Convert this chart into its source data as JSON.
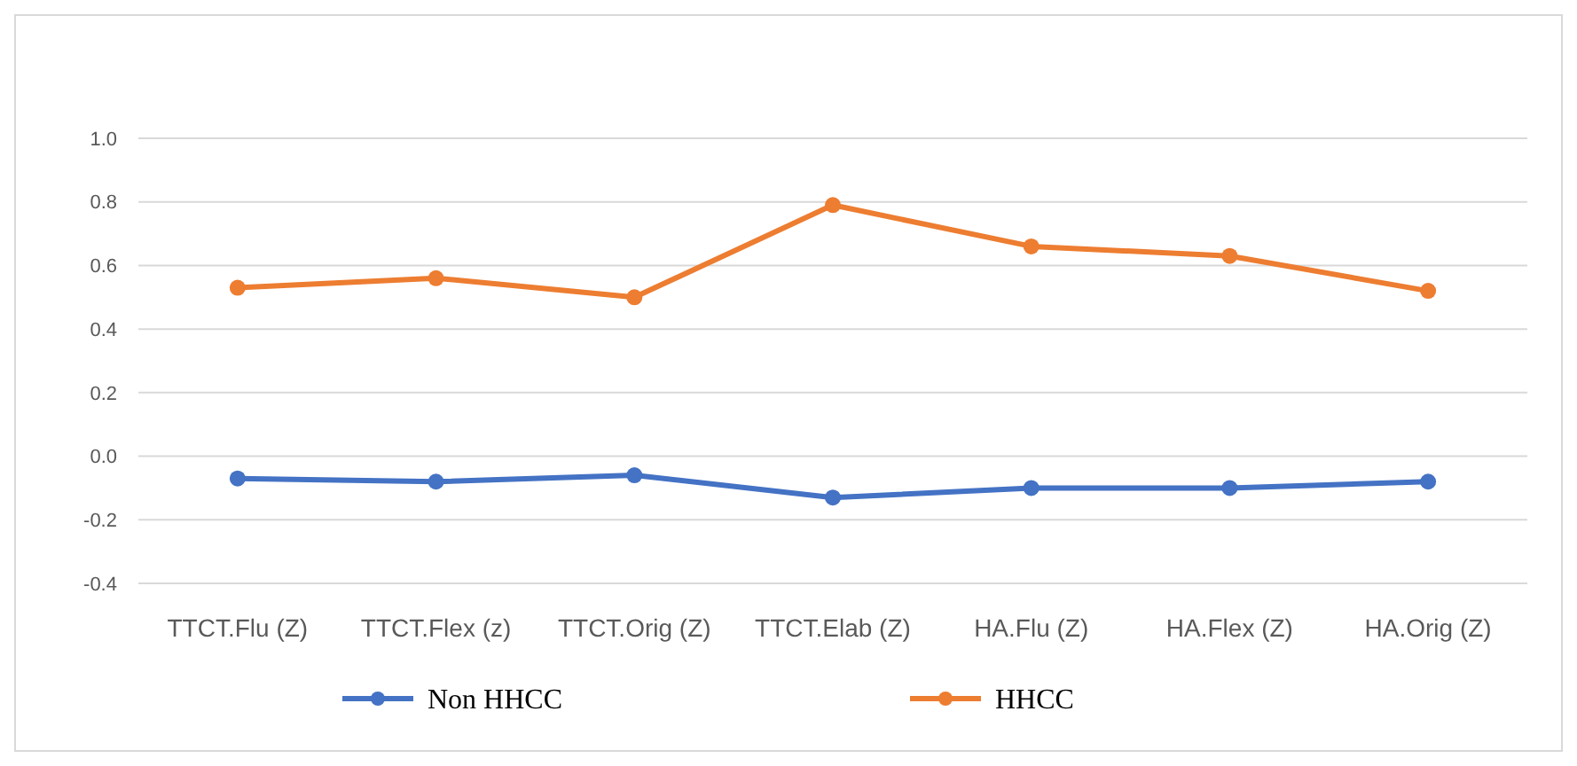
{
  "chart_data": {
    "type": "line",
    "categories": [
      "TTCT.Flu (Z)",
      "TTCT.Flex (z)",
      "TTCT.Orig (Z)",
      "TTCT.Elab (Z)",
      "HA.Flu (Z)",
      "HA.Flex (Z)",
      "HA.Orig (Z)"
    ],
    "series": [
      {
        "name": "Non HHCC",
        "color": "#4472c4",
        "values": [
          -0.07,
          -0.08,
          -0.06,
          -0.13,
          -0.1,
          -0.1,
          -0.08
        ]
      },
      {
        "name": "HHCC",
        "color": "#ed7d31",
        "values": [
          0.53,
          0.56,
          0.5,
          0.79,
          0.66,
          0.63,
          0.52
        ]
      }
    ],
    "ylim": [
      -0.4,
      1.0
    ],
    "yticks": [
      {
        "value": -0.4,
        "label": "-0.4"
      },
      {
        "value": -0.2,
        "label": "-0.2"
      },
      {
        "value": 0,
        "label": "0.0"
      },
      {
        "value": 0.2,
        "label": "0.2"
      },
      {
        "value": 0.4,
        "label": "0.4"
      },
      {
        "value": 0.6,
        "label": "0.6"
      },
      {
        "value": 0.8,
        "label": "0.8"
      },
      {
        "value": 1,
        "label": "1.0"
      }
    ],
    "grid": "y",
    "legend": "bottom",
    "marker": "circle",
    "line_style": "solid"
  }
}
